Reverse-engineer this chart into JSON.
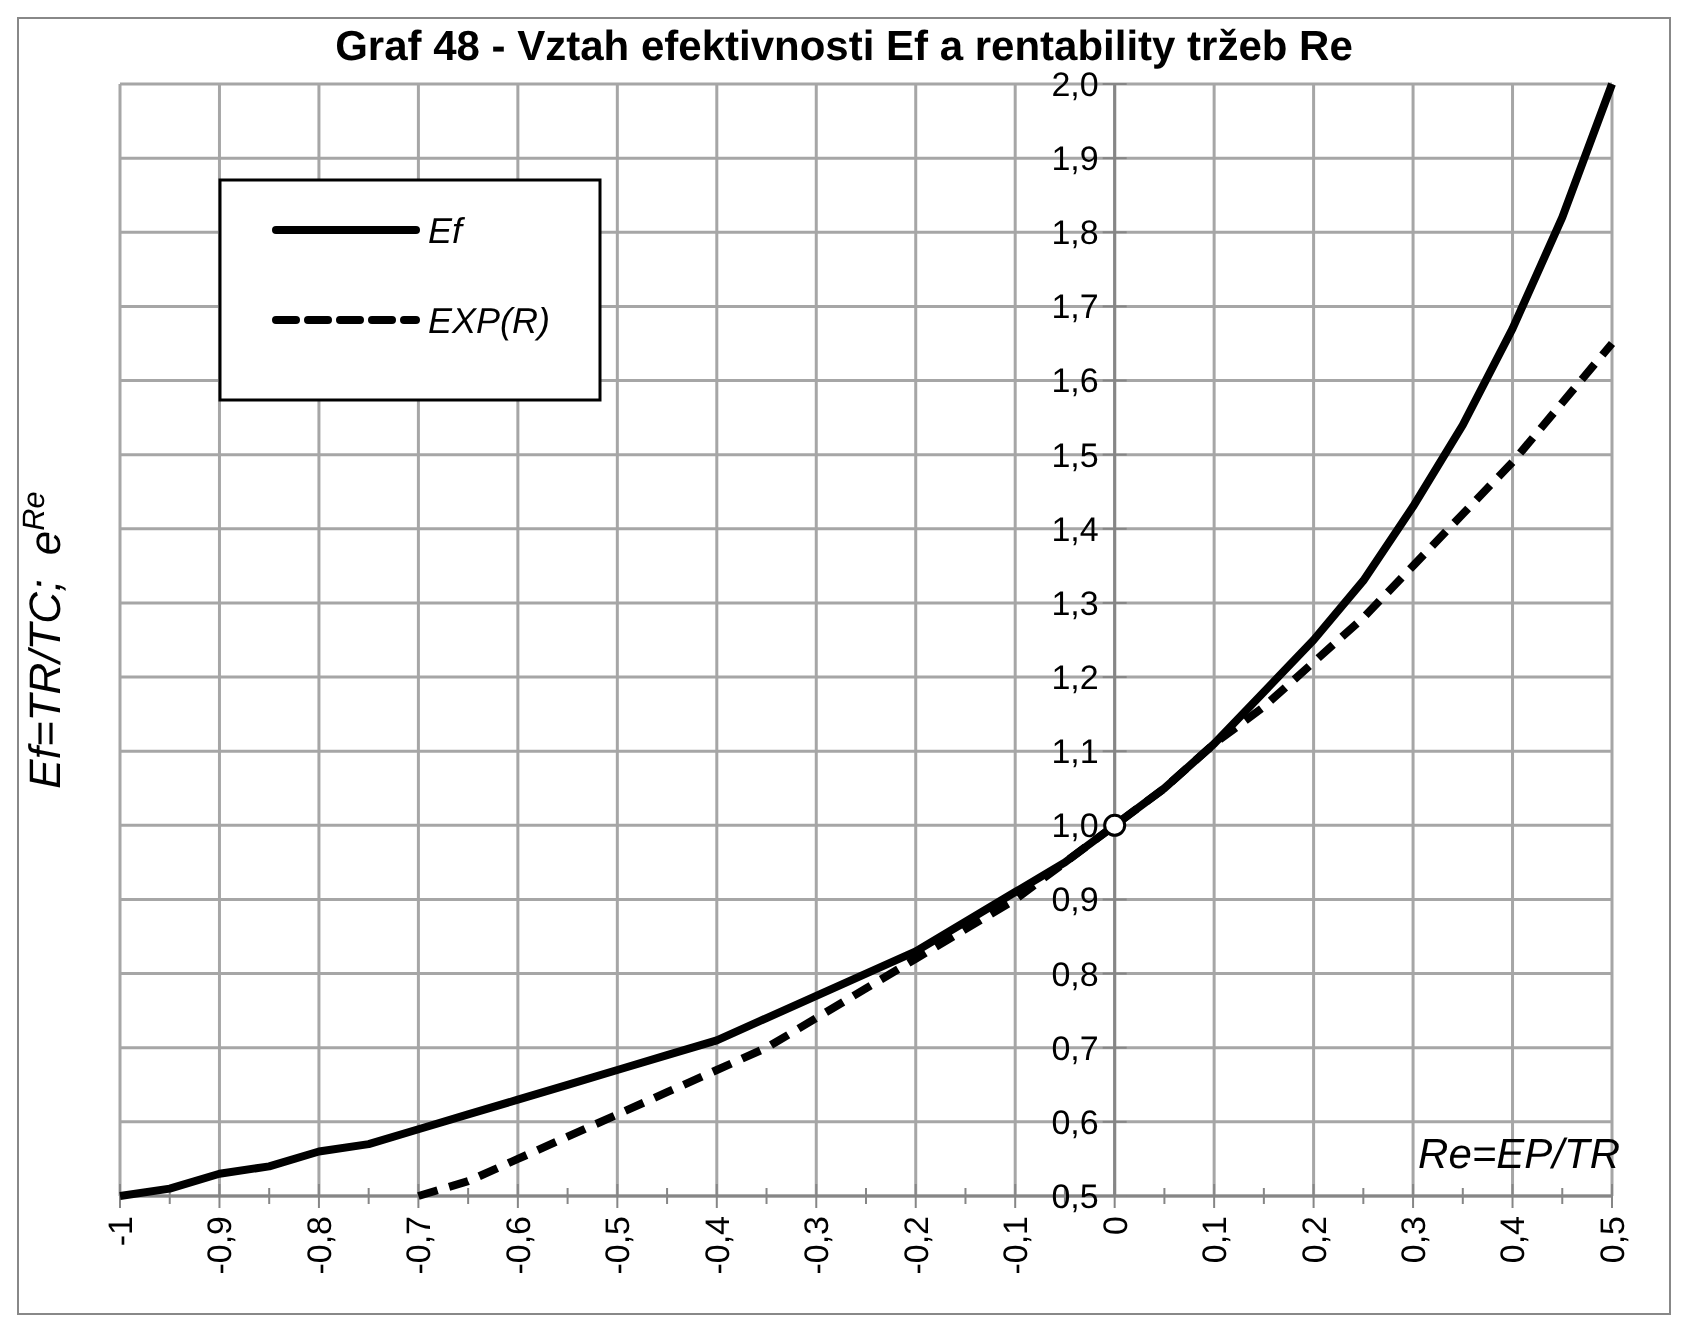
{
  "chart_data": {
    "type": "line",
    "title": "Graf 48 - Vztah efektivnosti Ef a rentability tržeb Re",
    "xlabel": "Re=EP/TR",
    "ylabel": "Ef=TR/TC;  e$^{Re}$",
    "xlim": [
      -1,
      0.5
    ],
    "ylim": [
      0.5,
      2.0
    ],
    "xticks": [
      {
        "value": -1,
        "label": "-1"
      },
      {
        "value": -0.9,
        "label": "-0,9"
      },
      {
        "value": -0.8,
        "label": "-0,8"
      },
      {
        "value": -0.7,
        "label": "-0,7"
      },
      {
        "value": -0.6,
        "label": "-0,6"
      },
      {
        "value": -0.5,
        "label": "-0,5"
      },
      {
        "value": -0.4,
        "label": "-0,4"
      },
      {
        "value": -0.3,
        "label": "-0,3"
      },
      {
        "value": -0.2,
        "label": "-0,2"
      },
      {
        "value": -0.1,
        "label": "-0,1"
      },
      0,
      {
        "value": 0.1,
        "label": "0,1"
      },
      {
        "value": 0.2,
        "label": "0,2"
      },
      {
        "value": 0.3,
        "label": "0,3"
      },
      {
        "value": 0.4,
        "label": "0,4"
      },
      {
        "value": 0.5,
        "label": "0,5"
      }
    ],
    "yticks": [
      {
        "value": 0.5,
        "label": "0,5"
      },
      {
        "value": 0.6,
        "label": "0,6"
      },
      {
        "value": 0.7,
        "label": "0,7"
      },
      {
        "value": 0.8,
        "label": "0,8"
      },
      {
        "value": 0.9,
        "label": "0,9"
      },
      {
        "value": 1.0,
        "label": "1,0"
      },
      {
        "value": 1.1,
        "label": "1,1"
      },
      {
        "value": 1.2,
        "label": "1,2"
      },
      {
        "value": 1.3,
        "label": "1,3"
      },
      {
        "value": 1.4,
        "label": "1,4"
      },
      {
        "value": 1.5,
        "label": "1,5"
      },
      {
        "value": 1.6,
        "label": "1,6"
      },
      {
        "value": 1.7,
        "label": "1,7"
      },
      {
        "value": 1.8,
        "label": "1,8"
      },
      {
        "value": 1.9,
        "label": "1,9"
      },
      {
        "value": 2.0,
        "label": "2,0"
      }
    ],
    "grid": true,
    "legend": "top left",
    "series": [
      {
        "name": "Ef",
        "color": "#000000",
        "line_style": "solid",
        "x": [
          -1,
          -0.95,
          -0.9,
          -0.85,
          -0.8,
          -0.75,
          -0.7,
          -0.65,
          -0.6,
          -0.55,
          -0.5,
          -0.45,
          -0.4,
          -0.35,
          -0.3,
          -0.25,
          -0.2,
          -0.15,
          -0.1,
          -0.05,
          0,
          0.05,
          0.1,
          0.15,
          0.2,
          0.25,
          0.3,
          0.35,
          0.4,
          0.45,
          0.5
        ],
        "values": [
          0.5,
          0.51,
          0.53,
          0.54,
          0.56,
          0.57,
          0.59,
          0.61,
          0.63,
          0.65,
          0.67,
          0.69,
          0.71,
          0.74,
          0.77,
          0.8,
          0.83,
          0.87,
          0.91,
          0.95,
          1.0,
          1.05,
          1.11,
          1.18,
          1.25,
          1.33,
          1.43,
          1.54,
          1.67,
          1.82,
          2.0
        ]
      },
      {
        "name": "EXP(R)",
        "color": "#000000",
        "line_style": "dashed",
        "x": [
          -0.7,
          -0.65,
          -0.6,
          -0.55,
          -0.5,
          -0.45,
          -0.4,
          -0.35,
          -0.3,
          -0.25,
          -0.2,
          -0.15,
          -0.1,
          -0.05,
          0,
          0.05,
          0.1,
          0.15,
          0.2,
          0.25,
          0.3,
          0.35,
          0.4,
          0.45,
          0.5
        ],
        "values": [
          0.5,
          0.52,
          0.55,
          0.58,
          0.61,
          0.64,
          0.67,
          0.7,
          0.74,
          0.78,
          0.82,
          0.86,
          0.9,
          0.95,
          1.0,
          1.05,
          1.11,
          1.16,
          1.22,
          1.28,
          1.35,
          1.42,
          1.49,
          1.57,
          1.65
        ]
      },
      {
        "type": "scatter",
        "color": "#000000",
        "marker": "circle",
        "x": [
          0
        ],
        "values": [
          1.0
        ]
      }
    ]
  }
}
